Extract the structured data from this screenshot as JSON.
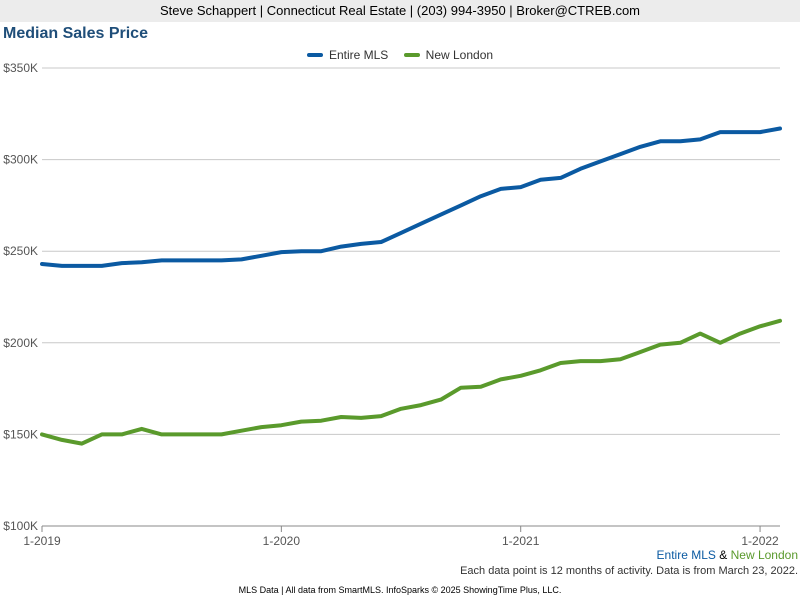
{
  "header": {
    "text": "Steve Schappert | Connecticut Real Estate | (203) 994-3950 | Broker@CTREB.com"
  },
  "chart_data": {
    "type": "line",
    "title": "Median Sales Price",
    "xlabel": "",
    "ylabel": "",
    "ylim": [
      100000,
      350000
    ],
    "yticks": [
      100000,
      150000,
      200000,
      250000,
      300000,
      350000
    ],
    "ytick_labels": [
      "$100K",
      "$150K",
      "$200K",
      "$250K",
      "$300K",
      "$350K"
    ],
    "xticks": [
      0,
      12,
      24,
      36
    ],
    "xtick_labels": [
      "1-2019",
      "1-2020",
      "1-2021",
      "1-2022"
    ],
    "x_range": [
      0,
      37
    ],
    "grid": true,
    "legend_position": "top-center",
    "series": [
      {
        "name": "Entire MLS",
        "color": "#0b5aa2",
        "values": [
          243000,
          242000,
          242000,
          242000,
          243500,
          244000,
          245000,
          245000,
          245000,
          245000,
          245500,
          247500,
          249500,
          250000,
          250000,
          252500,
          254000,
          255000,
          260000,
          265000,
          270000,
          275000,
          280000,
          284000,
          285000,
          289000,
          290000,
          295000,
          299000,
          303000,
          307000,
          310000,
          310000,
          311000,
          315000,
          315000,
          315000,
          317000
        ]
      },
      {
        "name": "New London",
        "color": "#5a9a2c",
        "values": [
          150000,
          147000,
          145000,
          150000,
          150000,
          153000,
          150000,
          150000,
          150000,
          150000,
          152000,
          154000,
          155000,
          157000,
          157500,
          159500,
          159000,
          160000,
          164000,
          166000,
          169000,
          175500,
          176000,
          180000,
          182000,
          185000,
          189000,
          190000,
          190000,
          191000,
          195000,
          199000,
          200000,
          205000,
          200000,
          205000,
          209000,
          212000
        ]
      }
    ]
  },
  "series_note": {
    "mls": "Entire MLS",
    "amp": "&",
    "town": "New London"
  },
  "notes": {
    "activity": "Each data point is 12 months of activity. Data is from March 23, 2022.",
    "footer": "MLS Data | All data from SmartMLS. InfoSparks © 2025 ShowingTime Plus, LLC."
  }
}
